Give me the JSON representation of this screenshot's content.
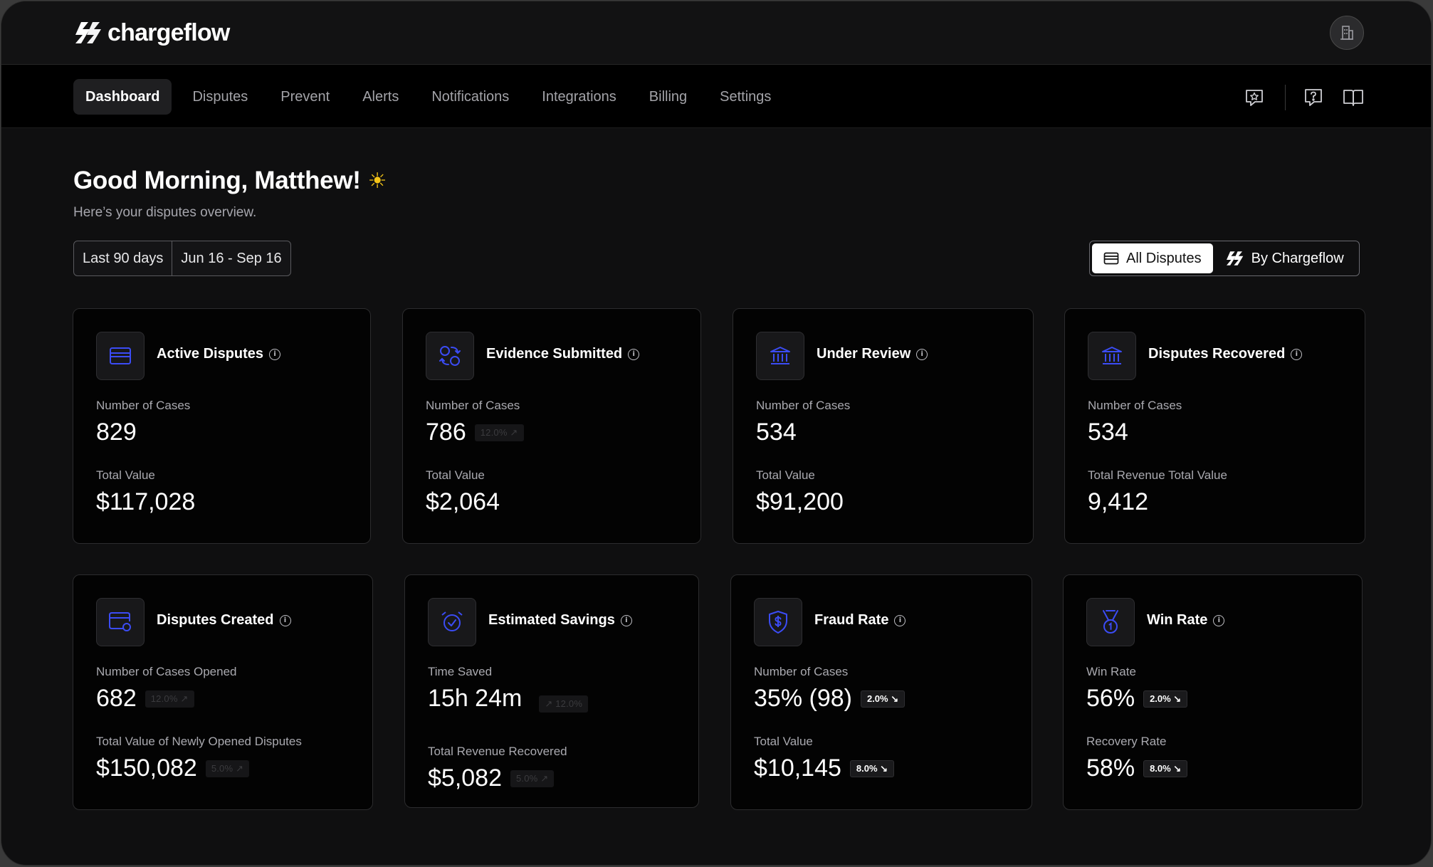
{
  "brand": {
    "name": "chargeflow"
  },
  "nav": {
    "items": [
      "Dashboard",
      "Disputes",
      "Prevent",
      "Alerts",
      "Notifications",
      "Integrations",
      "Billing",
      "Settings"
    ],
    "active": "Dashboard",
    "right_icons": [
      "feedback-star-icon",
      "help-question-icon",
      "docs-book-icon"
    ]
  },
  "header": {
    "greeting": "Good Morning, Matthew!",
    "greeting_emoji": "☀️",
    "subtitle": "Here’s your disputes overview.",
    "date_preset": "Last 90 days",
    "date_range": "Jun 16 - Sep 16",
    "toggle": {
      "all": "All Disputes",
      "by_chargeflow": "By Chargeflow",
      "selected": "All Disputes"
    }
  },
  "cards": [
    {
      "title": "Active Disputes",
      "icon": "card-icon",
      "label1": "Number of Cases",
      "value1": "829",
      "label2": "Total Value",
      "value2": "$117,028"
    },
    {
      "title": "Evidence Submitted",
      "icon": "evidence-exchange-icon",
      "label1": "Number of Cases",
      "value1": "786",
      "badge1": "12.0% ↗",
      "label2": "Total Value",
      "value2": "$2,064"
    },
    {
      "title": "Under Review",
      "icon": "bank-icon",
      "label1": "Number of Cases",
      "value1": "534",
      "label2": "Total Value",
      "value2": "$91,200"
    },
    {
      "title": "Disputes Recovered",
      "icon": "bank-icon",
      "label1": "Number of Cases",
      "value1": "534",
      "label2": "Total Revenue Total Value",
      "value2": "9,412"
    },
    {
      "title": "Disputes Created",
      "icon": "card-plus-icon",
      "label1": "Number of Cases Opened",
      "value1": "682",
      "badge1": "12.0% ↗",
      "label2": "Total Value of Newly Opened Disputes",
      "value2": "$150,082",
      "badge2": "5.0% ↗"
    },
    {
      "title": "Estimated Savings",
      "icon": "alarm-clock-icon",
      "label1": "Time Saved",
      "value1": "15h 24m",
      "badge1": "↗ 12.0%",
      "label2": "Total Revenue Recovered",
      "value2": "$5,082",
      "badge2": "5.0% ↗"
    },
    {
      "title": "Fraud Rate",
      "icon": "shield-dollar-icon",
      "label1": "Number of Cases",
      "value1": "35% (98)",
      "badge1": "2.0% ↘",
      "label2": "Total Value",
      "value2": "$10,145",
      "badge2": "8.0% ↘"
    },
    {
      "title": "Win Rate",
      "icon": "medal-icon",
      "label1": "Win Rate",
      "value1": "56%",
      "badge1": "2.0% ↘",
      "label2": "Recovery Rate",
      "value2": "58%",
      "badge2": "8.0% ↘"
    }
  ],
  "colors": {
    "accent": "#3b4cf5",
    "background": "#0f0f10",
    "card": "#030303"
  }
}
